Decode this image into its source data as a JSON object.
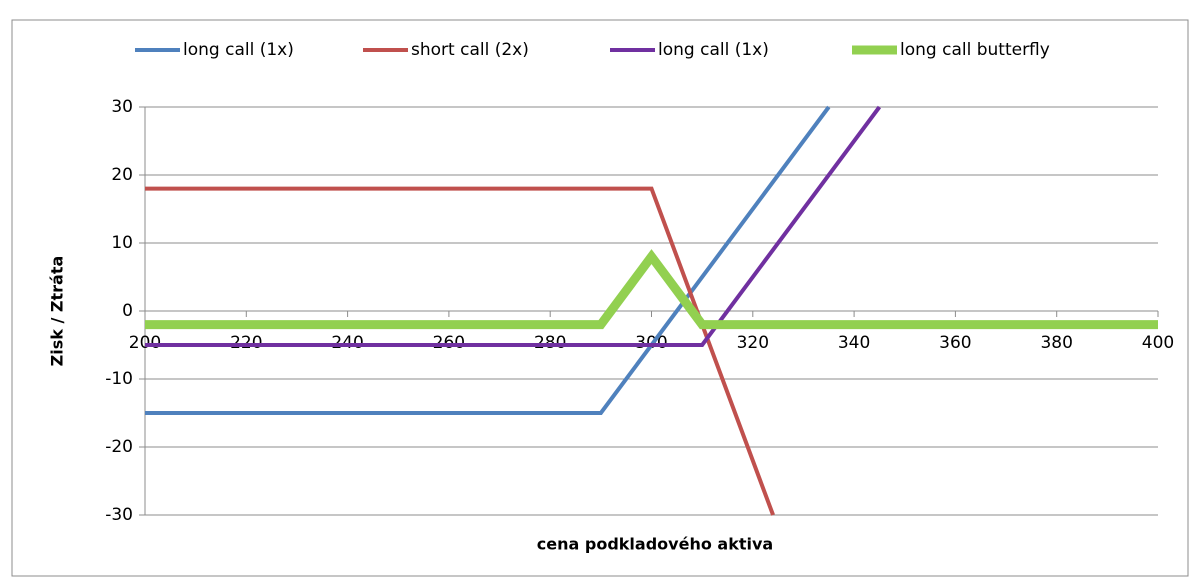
{
  "chart_data": {
    "type": "line",
    "x_label": "cena podkladového aktiva",
    "y_label": "Zisk / Ztráta",
    "xlim": [
      200,
      400
    ],
    "xticks": [
      200,
      220,
      240,
      260,
      280,
      300,
      320,
      340,
      360,
      380,
      400
    ],
    "ylim": [
      -30,
      30
    ],
    "yticks": [
      -30,
      -20,
      -10,
      0,
      10,
      20,
      30
    ],
    "grid": true,
    "legend": "top",
    "series": [
      {
        "name": "long call (1x)",
        "color": "#4f81bd",
        "x": [
          200,
          290,
          335
        ],
        "values": [
          -15,
          -15,
          30
        ]
      },
      {
        "name": "short call (2x)",
        "color": "#c0504d",
        "x": [
          200,
          300,
          324
        ],
        "values": [
          18,
          18,
          -30
        ]
      },
      {
        "name": "long call (1x)",
        "color": "#7030a0",
        "x": [
          200,
          310,
          345
        ],
        "values": [
          -5,
          -5,
          30
        ]
      },
      {
        "name": "long call butterfly",
        "color": "#92d050",
        "x": [
          200,
          290,
          300,
          310,
          400
        ],
        "values": [
          -2,
          -2,
          8,
          -2,
          -2
        ]
      }
    ]
  }
}
